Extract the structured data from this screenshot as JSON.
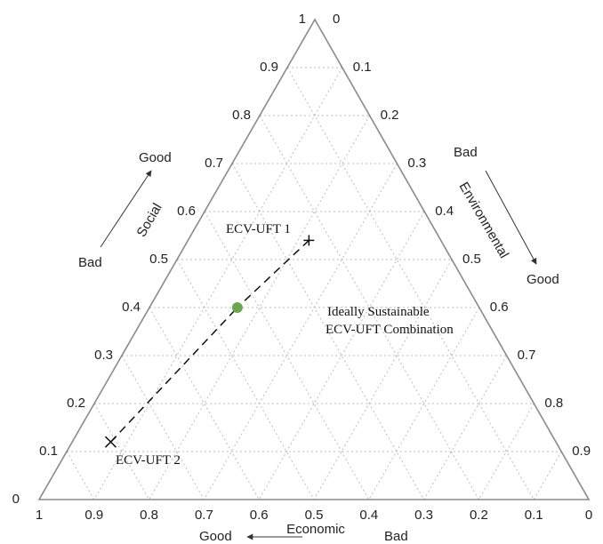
{
  "chart_data": {
    "type": "ternary",
    "axes": {
      "social": {
        "title": "Social",
        "ticks": [
          "0",
          "0.1",
          "0.2",
          "0.3",
          "0.4",
          "0.5",
          "0.6",
          "0.7",
          "0.8",
          "0.9",
          "1"
        ],
        "direction": {
          "from": "Bad",
          "to": "Good"
        }
      },
      "environmental": {
        "title": "Environmental",
        "ticks": [
          "0",
          "0.1",
          "0.2",
          "0.3",
          "0.4",
          "0.5",
          "0.6",
          "0.7",
          "0.8",
          "0.9"
        ],
        "direction": {
          "from": "Bad",
          "to": "Good"
        }
      },
      "economic": {
        "title": "Economic",
        "ticks": [
          "1",
          "0.9",
          "0.8",
          "0.7",
          "0.6",
          "0.5",
          "0.4",
          "0.3",
          "0.2",
          "0.1",
          "0"
        ],
        "direction": {
          "from": "Bad",
          "to": "Good"
        }
      }
    },
    "grid": true,
    "grid_step": 0.1,
    "points": [
      {
        "label": "ECV-UFT 1",
        "marker": "plus",
        "social": 0.54,
        "environmental": 0.22,
        "economic": 0.24
      },
      {
        "label": "Ideally Sustainable",
        "label2": "ECV-UFT Combination",
        "marker": "dot",
        "color": "#6aa84f",
        "social": 0.4,
        "environmental": 0.16,
        "economic": 0.44
      },
      {
        "label": "ECV-UFT 2",
        "marker": "cross",
        "social": 0.12,
        "environmental": 0.07,
        "economic": 0.81
      }
    ],
    "connectors": [
      {
        "from": "ECV-UFT 1",
        "to": "Ideally Sustainable",
        "style": "dashed"
      },
      {
        "from": "ECV-UFT 2",
        "to": "Ideally Sustainable",
        "style": "dashed"
      }
    ]
  }
}
